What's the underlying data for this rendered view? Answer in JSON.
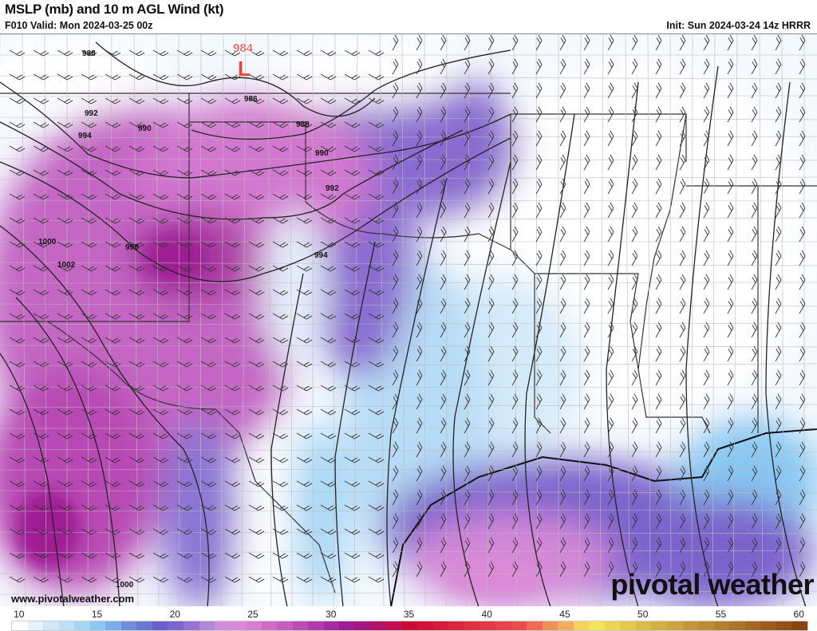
{
  "header": {
    "title": "MSLP (mb) and 10 m AGL Wind (kt)",
    "valid": "F010 Valid: Mon 2024-03-25 00z",
    "init": "Init: Sun 2024-03-24 14z HRRR"
  },
  "map": {
    "low_center": {
      "pressure": "984",
      "symbol": "L",
      "color": "#e8463c"
    },
    "isobar_labels": [
      "988",
      "986",
      "988",
      "990",
      "990",
      "992",
      "992",
      "994",
      "994",
      "998",
      "1000",
      "1002",
      "1000"
    ]
  },
  "footer": {
    "website": "www.pivotalweather.com",
    "logo": "pivotal weather"
  },
  "colorbar": {
    "units": "kt",
    "tick_labels": [
      "10",
      "15",
      "20",
      "25",
      "30",
      "35",
      "40",
      "45",
      "50",
      "55",
      "60"
    ],
    "min": 10,
    "max": 60,
    "colors": [
      "#ffffff",
      "#e6f2fc",
      "#cfe7f8",
      "#bde0f8",
      "#a6d6f5",
      "#88c8f3",
      "#7aaee8",
      "#6e90dc",
      "#6b78d4",
      "#6a5ecb",
      "#7c64cc",
      "#9673d0",
      "#b088d6",
      "#cf8fdc",
      "#dc8ad8",
      "#d97fd2",
      "#d06cc8",
      "#c75cbf",
      "#bd4bb5",
      "#b23aac",
      "#a82aa2",
      "#9e1c94",
      "#a51780",
      "#b3146a",
      "#c11052",
      "#cc0a35",
      "#d01438",
      "#d41e3c",
      "#d82840",
      "#dc3244",
      "#e03a48",
      "#e4444a",
      "#e84e4e",
      "#ee6a56",
      "#f2905a",
      "#f6ac5e",
      "#f8d25e",
      "#f4e45a",
      "#eed654",
      "#e6c84e",
      "#dcbc48",
      "#d4b044",
      "#cca440",
      "#c4983a",
      "#bc8c34",
      "#b4802e",
      "#ac7428",
      "#a46822",
      "#9c5c1c",
      "#945016",
      "#8c4410"
    ]
  }
}
